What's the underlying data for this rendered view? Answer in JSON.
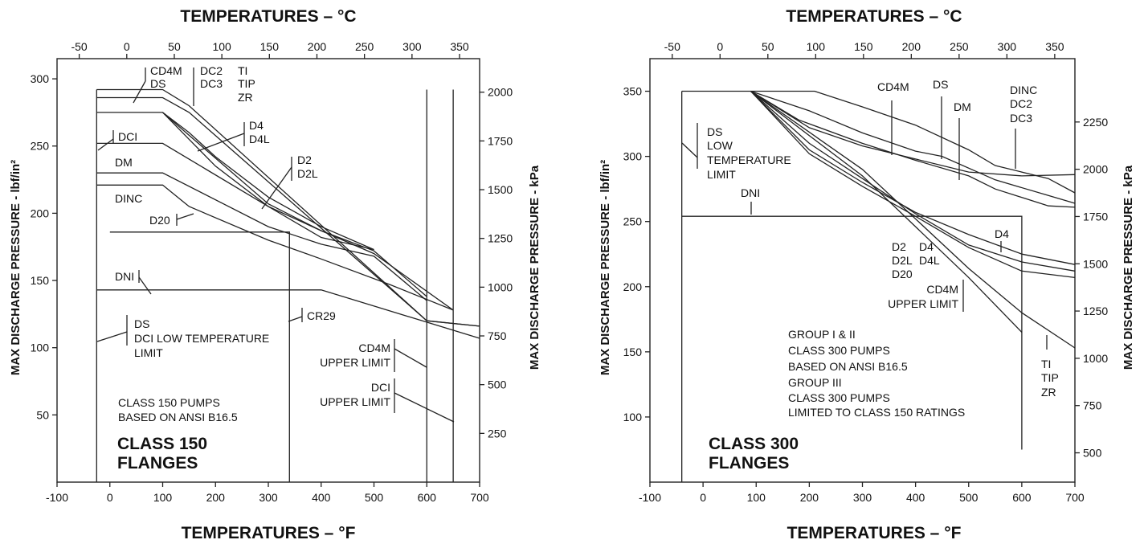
{
  "chart_data": [
    {
      "type": "line",
      "title_top": "TEMPERATURES – °C",
      "title_bottom": "TEMPERATURES – °F",
      "ylabel_left": "MAX DISCHARGE PRESSURE - lbf/in²",
      "ylabel_right": "MAX DISCHARGE PRESSURE - kPa",
      "xlim_F": [
        -100,
        700
      ],
      "ylim_psi": [
        0,
        315
      ],
      "ylim_kPa_right": [
        0,
        2172
      ],
      "ticks_F": [
        -100,
        0,
        100,
        200,
        300,
        400,
        500,
        600,
        700
      ],
      "ticks_C": [
        -50,
        0,
        50,
        100,
        150,
        200,
        250,
        300,
        350
      ],
      "ticks_psi": [
        50,
        100,
        150,
        200,
        250,
        300
      ],
      "ticks_kPa": [
        250,
        500,
        750,
        1000,
        1250,
        1500,
        1750,
        2000
      ],
      "flange_label": [
        "CLASS 150",
        "FLANGES"
      ],
      "note": [
        "CLASS 150 PUMPS",
        "BASED ON ANSI B16.5"
      ],
      "series": [
        {
          "name": "CD4M",
          "points": [
            [
              -25,
              292
            ],
            [
              100,
              292
            ],
            [
              150,
              280
            ],
            [
              600,
              120
            ],
            [
              700,
              116
            ]
          ]
        },
        {
          "name": "DS",
          "points": [
            [
              -25,
              286
            ],
            [
              100,
              286
            ],
            [
              150,
              275
            ],
            [
              600,
              120
            ],
            [
              700,
              116
            ]
          ]
        },
        {
          "name": "DC2",
          "points": [
            [
              -25,
              286
            ],
            [
              100,
              286
            ],
            [
              150,
              275
            ],
            [
              600,
              120
            ],
            [
              700,
              116
            ]
          ]
        },
        {
          "name": "DC3",
          "points": [
            [
              -25,
              286
            ],
            [
              100,
              286
            ],
            [
              150,
              275
            ],
            [
              600,
              120
            ],
            [
              700,
              116
            ]
          ]
        },
        {
          "name": "TI",
          "points": [
            [
              -25,
              286
            ],
            [
              100,
              286
            ],
            [
              150,
              275
            ],
            [
              600,
              120
            ],
            [
              700,
              116
            ]
          ]
        },
        {
          "name": "TIP",
          "points": [
            [
              -25,
              286
            ],
            [
              100,
              286
            ],
            [
              150,
              275
            ],
            [
              600,
              120
            ],
            [
              700,
              116
            ]
          ]
        },
        {
          "name": "ZR",
          "points": [
            [
              -25,
              286
            ],
            [
              100,
              286
            ],
            [
              150,
              275
            ],
            [
              600,
              120
            ],
            [
              700,
              116
            ]
          ]
        },
        {
          "name": "D4",
          "points": [
            [
              100,
              275
            ],
            [
              150,
              260
            ],
            [
              200,
              242
            ],
            [
              300,
              212
            ],
            [
              400,
              190
            ],
            [
              500,
              173
            ]
          ]
        },
        {
          "name": "D4L",
          "points": [
            [
              100,
              275
            ],
            [
              150,
              260
            ],
            [
              200,
              242
            ],
            [
              300,
              212
            ],
            [
              400,
              190
            ],
            [
              500,
              173
            ]
          ]
        },
        {
          "name": "D2",
          "points": [
            [
              100,
              275
            ],
            [
              150,
              255
            ],
            [
              200,
              235
            ],
            [
              300,
              205
            ],
            [
              400,
              182
            ],
            [
              500,
              173
            ]
          ]
        },
        {
          "name": "D2L",
          "points": [
            [
              100,
              275
            ],
            [
              150,
              255
            ],
            [
              200,
              235
            ],
            [
              300,
              205
            ],
            [
              400,
              182
            ],
            [
              500,
              173
            ]
          ]
        },
        {
          "name": "DCI",
          "points": [
            [
              -25,
              275
            ],
            [
              100,
              275
            ],
            [
              300,
              207
            ],
            [
              400,
              187
            ],
            [
              500,
              170
            ],
            [
              650,
              128
            ]
          ]
        },
        {
          "name": "DM",
          "points": [
            [
              -25,
              252
            ],
            [
              100,
              252
            ],
            [
              300,
              205
            ],
            [
              400,
              187
            ],
            [
              500,
              172
            ],
            [
              600,
              138
            ]
          ]
        },
        {
          "name": "DINC",
          "points": [
            [
              -25,
              230
            ],
            [
              100,
              230
            ],
            [
              300,
              190
            ],
            [
              400,
              177
            ],
            [
              500,
              168
            ],
            [
              600,
              135
            ]
          ]
        },
        {
          "name": "D20",
          "points": [
            [
              -25,
              221
            ],
            [
              100,
              221
            ],
            [
              150,
              205
            ],
            [
              300,
              180
            ],
            [
              400,
              166
            ],
            [
              530,
              147
            ],
            [
              650,
              128
            ]
          ]
        },
        {
          "name": "DNI",
          "points": [
            [
              -25,
              143
            ],
            [
              400,
              143
            ],
            [
              700,
              107
            ]
          ]
        },
        {
          "name": "CR29",
          "points": [
            [
              0,
              186
            ],
            [
              340,
              186
            ],
            [
              340,
              0
            ]
          ]
        }
      ],
      "limits": [
        {
          "name": "DS / DCI LOW TEMPERATURE LIMIT",
          "x_F": -25
        },
        {
          "name": "CD4M UPPER LIMIT",
          "x_F": 600
        },
        {
          "name": "DCI UPPER LIMIT",
          "x_F": 650
        }
      ],
      "labels": {
        "cd4m": "CD4M",
        "ds": "DS",
        "dc2": "DC2",
        "dc3": "DC3",
        "ti": "TI",
        "tip": "TIP",
        "zr": "ZR",
        "d4": "D4",
        "d4l": "D4L",
        "d2": "D2",
        "d2l": "D2L",
        "dci": "DCI",
        "dm": "DM",
        "dinc": "DINC",
        "d20": "D20",
        "dni": "DNI",
        "cr29": "CR29",
        "lowlim": [
          "DS",
          "DCI LOW TEMPERATURE",
          "LIMIT"
        ],
        "cd4mupper": [
          "CD4M",
          "UPPER LIMIT"
        ],
        "dciupper": [
          "DCI",
          "UPPER LIMIT"
        ]
      }
    },
    {
      "type": "line",
      "title_top": "TEMPERATURES – °C",
      "title_bottom": "TEMPERATURES – °F",
      "ylabel_left": "MAX DISCHARGE PRESSURE - lbf/in²",
      "ylabel_right": "MAX DISCHARGE PRESSURE - kPa",
      "xlim_F": [
        -100,
        700
      ],
      "ylim_psi": [
        50,
        375
      ],
      "ylim_kPa_right": [
        345,
        2585
      ],
      "ticks_F": [
        -100,
        0,
        100,
        200,
        300,
        400,
        500,
        600,
        700
      ],
      "ticks_C": [
        -50,
        0,
        50,
        100,
        150,
        200,
        250,
        300,
        350
      ],
      "ticks_psi": [
        100,
        150,
        200,
        250,
        300,
        350
      ],
      "ticks_kPa": [
        500,
        750,
        1000,
        1250,
        1500,
        1750,
        2000,
        2250
      ],
      "flange_label": [
        "CLASS 300",
        "FLANGES"
      ],
      "note": [
        "GROUP I & II",
        "CLASS 300 PUMPS",
        "BASED ON ANSI B16.5",
        "GROUP III",
        "CLASS 300 PUMPS",
        "LIMITED TO CLASS 150 RATINGS"
      ],
      "series": [
        {
          "name": "CD4M",
          "points": [
            [
              -40,
              350
            ],
            [
              210,
              350
            ],
            [
              300,
              338
            ],
            [
              400,
              324
            ],
            [
              500,
              305
            ],
            [
              550,
              293
            ],
            [
              650,
              283
            ],
            [
              700,
              272
            ]
          ]
        },
        {
          "name": "DS",
          "points": [
            [
              90,
              350
            ],
            [
              200,
              335
            ],
            [
              300,
              318
            ],
            [
              400,
              304
            ],
            [
              450,
              300
            ],
            [
              550,
              282
            ],
            [
              650,
              270
            ],
            [
              700,
              264
            ]
          ]
        },
        {
          "name": "DM",
          "points": [
            [
              90,
              350
            ],
            [
              200,
              322
            ],
            [
              300,
              308
            ],
            [
              400,
              298
            ],
            [
              500,
              288
            ],
            [
              600,
              285
            ],
            [
              700,
              286
            ]
          ]
        },
        {
          "name": "DINC",
          "points": [
            [
              90,
              350
            ],
            [
              180,
              328
            ],
            [
              300,
              310
            ],
            [
              400,
              297
            ],
            [
              500,
              285
            ],
            [
              550,
              275
            ],
            [
              650,
              262
            ],
            [
              700,
              261
            ]
          ]
        },
        {
          "name": "DC2",
          "points": [
            [
              90,
              350
            ],
            [
              180,
              328
            ],
            [
              300,
              310
            ],
            [
              400,
              297
            ],
            [
              500,
              285
            ],
            [
              550,
              275
            ],
            [
              650,
              262
            ],
            [
              700,
              261
            ]
          ]
        },
        {
          "name": "DC3",
          "points": [
            [
              90,
              350
            ],
            [
              180,
              328
            ],
            [
              300,
              310
            ],
            [
              400,
              297
            ],
            [
              500,
              285
            ],
            [
              550,
              275
            ],
            [
              650,
              262
            ],
            [
              700,
              261
            ]
          ]
        },
        {
          "name": "D2",
          "points": [
            [
              90,
              350
            ],
            [
              200,
              310
            ],
            [
              300,
              283
            ],
            [
              400,
              256
            ],
            [
              500,
              232
            ],
            [
              600,
              219
            ],
            [
              700,
              212
            ]
          ]
        },
        {
          "name": "D2L",
          "points": [
            [
              90,
              350
            ],
            [
              200,
              310
            ],
            [
              300,
              283
            ],
            [
              400,
              256
            ],
            [
              500,
              232
            ],
            [
              600,
              219
            ],
            [
              700,
              212
            ]
          ]
        },
        {
          "name": "D20",
          "points": [
            [
              90,
              350
            ],
            [
              200,
              302
            ],
            [
              300,
              277
            ],
            [
              400,
              254
            ],
            [
              500,
              230
            ],
            [
              600,
              212
            ],
            [
              700,
              207
            ]
          ]
        },
        {
          "name": "D4",
          "points": [
            [
              90,
              350
            ],
            [
              200,
              305
            ],
            [
              300,
              280
            ],
            [
              400,
              257
            ],
            [
              500,
              240
            ],
            [
              600,
              225
            ],
            [
              700,
              217
            ]
          ]
        },
        {
          "name": "D4L",
          "points": [
            [
              90,
              350
            ],
            [
              200,
              305
            ],
            [
              300,
              280
            ],
            [
              400,
              257
            ],
            [
              500,
              240
            ],
            [
              600,
              225
            ],
            [
              700,
              217
            ]
          ]
        },
        {
          "name": "TI",
          "points": [
            [
              90,
              350
            ],
            [
              300,
              290
            ],
            [
              500,
              214
            ],
            [
              600,
              180
            ],
            [
              700,
              153
            ]
          ]
        },
        {
          "name": "TIP",
          "points": [
            [
              90,
              350
            ],
            [
              300,
              290
            ],
            [
              500,
              214
            ],
            [
              600,
              180
            ],
            [
              700,
              153
            ]
          ]
        },
        {
          "name": "ZR",
          "points": [
            [
              90,
              350
            ],
            [
              300,
              290
            ],
            [
              500,
              214
            ],
            [
              600,
              180
            ],
            [
              700,
              153
            ]
          ]
        },
        {
          "name": "CD4M UPPER LIMIT",
          "points": [
            [
              90,
              350
            ],
            [
              300,
              285
            ],
            [
              500,
              207
            ],
            [
              600,
              165
            ]
          ]
        },
        {
          "name": "DNI",
          "points": [
            [
              -40,
              254
            ],
            [
              600,
              254
            ],
            [
              600,
              75
            ]
          ]
        }
      ],
      "limits": [
        {
          "name": "DS LOW TEMPERATURE LIMIT",
          "x_F": -40
        }
      ],
      "labels": {
        "cd4m": "CD4M",
        "ds": "DS",
        "dm": "DM",
        "dinc": "DINC",
        "dc2": "DC2",
        "dc3": "DC3",
        "dslow": [
          "DS",
          "LOW",
          "TEMPERATURE",
          "LIMIT"
        ],
        "dni": "DNI",
        "d2": "D2",
        "d2l": "D2L",
        "d20": "D20",
        "d4": "D4",
        "d4l": "D4L",
        "d4b": "D4",
        "cd4mupper": [
          "CD4M",
          "UPPER LIMIT"
        ],
        "ti": "TI",
        "tip": "TIP",
        "zr": "ZR"
      }
    }
  ]
}
